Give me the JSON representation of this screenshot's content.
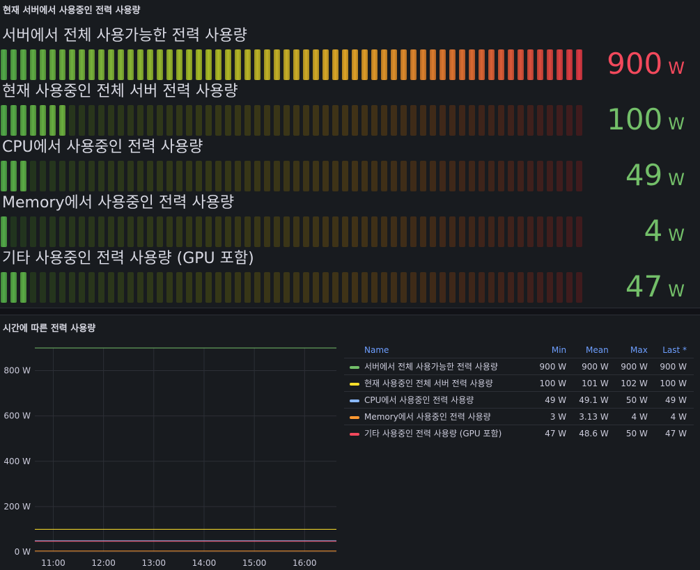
{
  "gauge_panel": {
    "title": "현재 서버에서 사용중인 전력 사용량",
    "max": 900,
    "gauges": [
      {
        "label": "서버에서 전체 사용가능한 전력 사용량",
        "value": 900,
        "value_text": "900",
        "unit": "W",
        "color": "#f2495c"
      },
      {
        "label": "현재 사용중인 전체 서버 전력 사용량",
        "value": 100,
        "value_text": "100",
        "unit": "W",
        "color": "#73bf69"
      },
      {
        "label": "CPU에서 사용중인 전력 사용량",
        "value": 49,
        "value_text": "49",
        "unit": "W",
        "color": "#73bf69"
      },
      {
        "label": "Memory에서 사용중인 전력 사용량",
        "value": 4,
        "value_text": "4",
        "unit": "W",
        "color": "#73bf69"
      },
      {
        "label": "기타 사용중인 전력 사용량 (GPU 포함)",
        "value": 47,
        "value_text": "47",
        "unit": "W",
        "color": "#73bf69"
      }
    ]
  },
  "timeseries_panel": {
    "title": "시간에 따른 전력 사용량",
    "legend": {
      "headers": {
        "name": "Name",
        "min": "Min",
        "mean": "Mean",
        "max": "Max",
        "last": "Last *"
      },
      "rows": [
        {
          "name": "서버에서 전체 사용가능한 전력 사용량",
          "color": "#73bf69",
          "min": "900 W",
          "mean": "900 W",
          "max": "900 W",
          "last": "900 W"
        },
        {
          "name": "현재 사용중인 전체 서버 전력 사용량",
          "color": "#fade2a",
          "min": "100 W",
          "mean": "101 W",
          "max": "102 W",
          "last": "100 W"
        },
        {
          "name": "CPU에서 사용중인 전력 사용량",
          "color": "#8ab8ff",
          "min": "49 W",
          "mean": "49.1 W",
          "max": "50 W",
          "last": "49 W"
        },
        {
          "name": "Memory에서 사용중인 전력 사용량",
          "color": "#ff9830",
          "min": "3 W",
          "mean": "3.13 W",
          "max": "4 W",
          "last": "4 W"
        },
        {
          "name": "기타 사용중인 전력 사용량 (GPU 포함)",
          "color": "#f2495c",
          "min": "47 W",
          "mean": "48.6 W",
          "max": "50 W",
          "last": "47 W"
        }
      ]
    }
  },
  "chart_data": {
    "type": "line",
    "title": "시간에 따른 전력 사용량",
    "xlabel": "",
    "ylabel": "",
    "ylim": [
      0,
      900
    ],
    "x_ticks": [
      "11:00",
      "12:00",
      "13:00",
      "14:00",
      "15:00",
      "16:00"
    ],
    "y_ticks": [
      "0 W",
      "200 W",
      "400 W",
      "600 W",
      "800 W"
    ],
    "y_tick_values": [
      0,
      200,
      400,
      600,
      800
    ],
    "x": [
      "10:38",
      "16:38"
    ],
    "series": [
      {
        "name": "서버에서 전체 사용가능한 전력 사용량",
        "color": "#73bf69",
        "values": [
          900,
          900
        ]
      },
      {
        "name": "현재 사용중인 전체 서버 전력 사용량",
        "color": "#fade2a",
        "values": [
          100,
          100
        ]
      },
      {
        "name": "CPU에서 사용중인 전력 사용량",
        "color": "#8ab8ff",
        "values": [
          49,
          49
        ]
      },
      {
        "name": "Memory에서 사용중인 전력 사용량",
        "color": "#ff9830",
        "values": [
          4,
          4
        ]
      },
      {
        "name": "기타 사용중인 전력 사용량 (GPU 포함)",
        "color": "#f2495c",
        "values": [
          47,
          47
        ]
      }
    ],
    "grid": true,
    "legend": "right"
  }
}
